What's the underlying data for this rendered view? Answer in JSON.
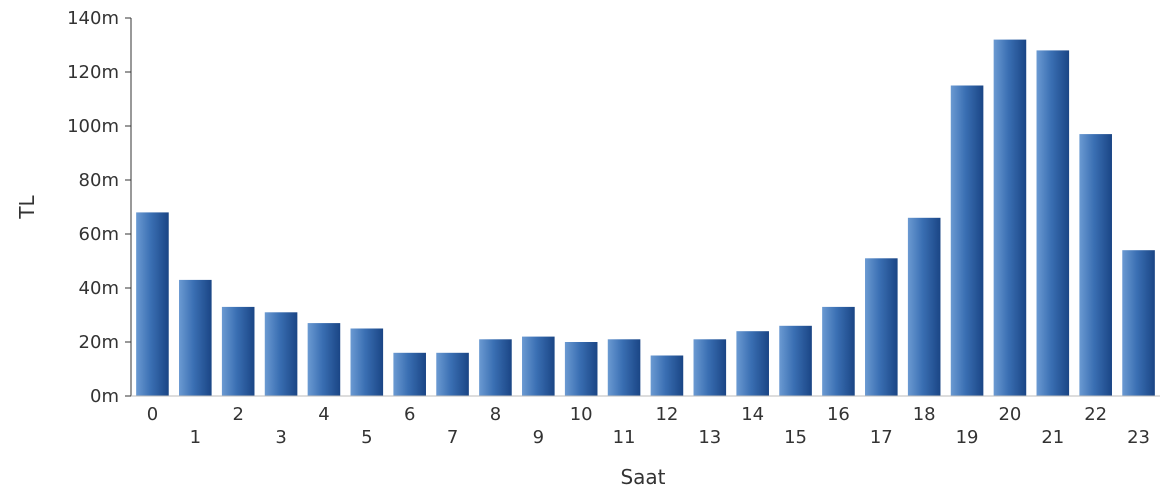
{
  "chart_data": {
    "type": "bar",
    "xlabel": "Saat",
    "ylabel": "TL",
    "categories": [
      "0",
      "1",
      "2",
      "3",
      "4",
      "5",
      "6",
      "7",
      "8",
      "9",
      "10",
      "11",
      "12",
      "13",
      "14",
      "15",
      "16",
      "17",
      "18",
      "19",
      "20",
      "21",
      "22",
      "23"
    ],
    "values": [
      68,
      43,
      33,
      31,
      27,
      25,
      16,
      16,
      21,
      22,
      20,
      21,
      15,
      21,
      24,
      26,
      33,
      51,
      66,
      115,
      132,
      128,
      97,
      54
    ],
    "ylim": [
      0,
      140
    ],
    "yticks": [
      0,
      20,
      40,
      60,
      80,
      100,
      120,
      140
    ],
    "ytick_labels": [
      "0m",
      "20m",
      "40m",
      "60m",
      "80m",
      "100m",
      "120m",
      "140m"
    ],
    "grid": false,
    "colors": {
      "bar_dark": "#1f4e8f",
      "bar_light": "#5a8cc8",
      "axis": "#333333"
    }
  }
}
